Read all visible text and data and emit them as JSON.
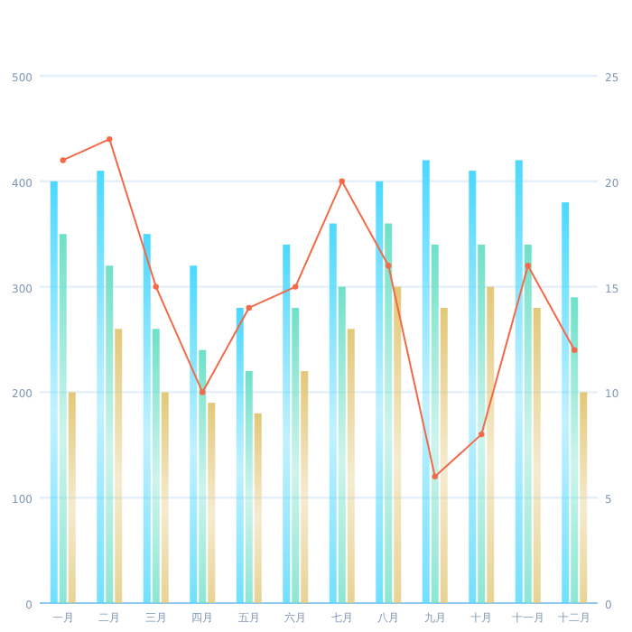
{
  "chart_data": {
    "type": "bar",
    "categories": [
      "一月",
      "二月",
      "三月",
      "四月",
      "五月",
      "六月",
      "七月",
      "八月",
      "九月",
      "十月",
      "十一月",
      "十二月"
    ],
    "series": [
      {
        "color": "#4dd8ff",
        "values": [
          400,
          410,
          350,
          320,
          280,
          340,
          360,
          400,
          420,
          410,
          420,
          380
        ]
      },
      {
        "color": "#70e0c8",
        "values": [
          350,
          320,
          260,
          240,
          220,
          280,
          300,
          360,
          340,
          340,
          340,
          290
        ]
      },
      {
        "color": "#e2c878",
        "values": [
          200,
          260,
          200,
          190,
          180,
          220,
          260,
          300,
          280,
          300,
          280,
          200
        ]
      },
      {
        "type": "line",
        "axis": "y2",
        "color": "#f26a4a",
        "marker": "circle",
        "values": [
          21,
          22,
          15,
          10,
          14,
          15,
          20,
          16,
          6,
          8,
          16,
          12
        ]
      }
    ],
    "ylim": [
      0,
      500
    ],
    "yticks": [
      0,
      100,
      200,
      300,
      400,
      500
    ],
    "y2lim": [
      0,
      25
    ],
    "y2ticks": [
      0,
      5,
      10,
      15,
      20,
      25
    ],
    "grid": "y"
  }
}
